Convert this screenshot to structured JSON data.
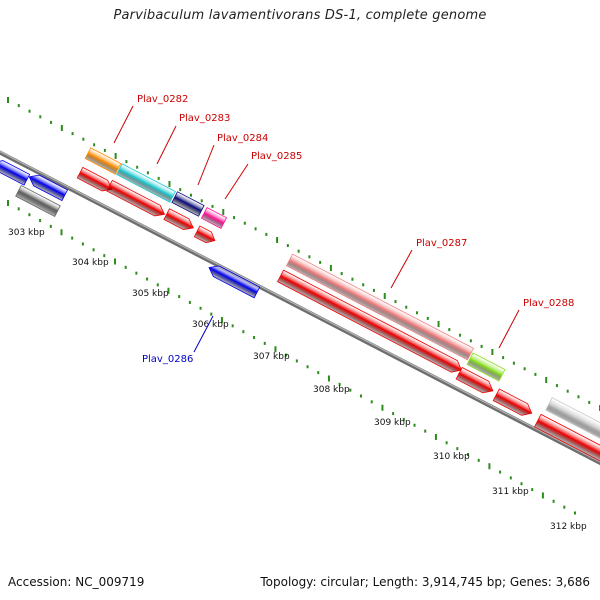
{
  "header": {
    "title": "Parvibaculum lavamentivorans DS-1, complete genome"
  },
  "footer": {
    "accession": "Accession: NC_009719",
    "summary": "Topology: circular; Length: 3,914,745 bp; Genes: 3,686"
  },
  "ruler": {
    "ticks": [
      "303 kbp",
      "304 kbp",
      "305 kbp",
      "306 kbp",
      "307 kbp",
      "308 kbp",
      "309 kbp",
      "310 kbp",
      "311 kbp",
      "312 kbp"
    ]
  },
  "gene_labels": [
    {
      "text": "Plav_0282",
      "color": "#cc0000"
    },
    {
      "text": "Plav_0283",
      "color": "#cc0000"
    },
    {
      "text": "Plav_0284",
      "color": "#cc0000"
    },
    {
      "text": "Plav_0285",
      "color": "#cc0000"
    },
    {
      "text": "Plav_0286",
      "color": "#0000cc"
    },
    {
      "text": "Plav_0287",
      "color": "#cc0000"
    },
    {
      "text": "Plav_0288",
      "color": "#cc0000"
    }
  ],
  "colors": {
    "backbone": "#8a8a8a",
    "cds_forward": "#ee0000",
    "cds_reverse": "#0000ee",
    "tick": "#2e8b1e",
    "orange": "#ff8c00",
    "cyan": "#1ec8d0",
    "navy": "#0a0a7a",
    "magenta": "#ff1493",
    "pink": "#f08080",
    "lime": "#8ae020",
    "dark_gray": "#606060",
    "light_gray": "#c8c8c8"
  }
}
